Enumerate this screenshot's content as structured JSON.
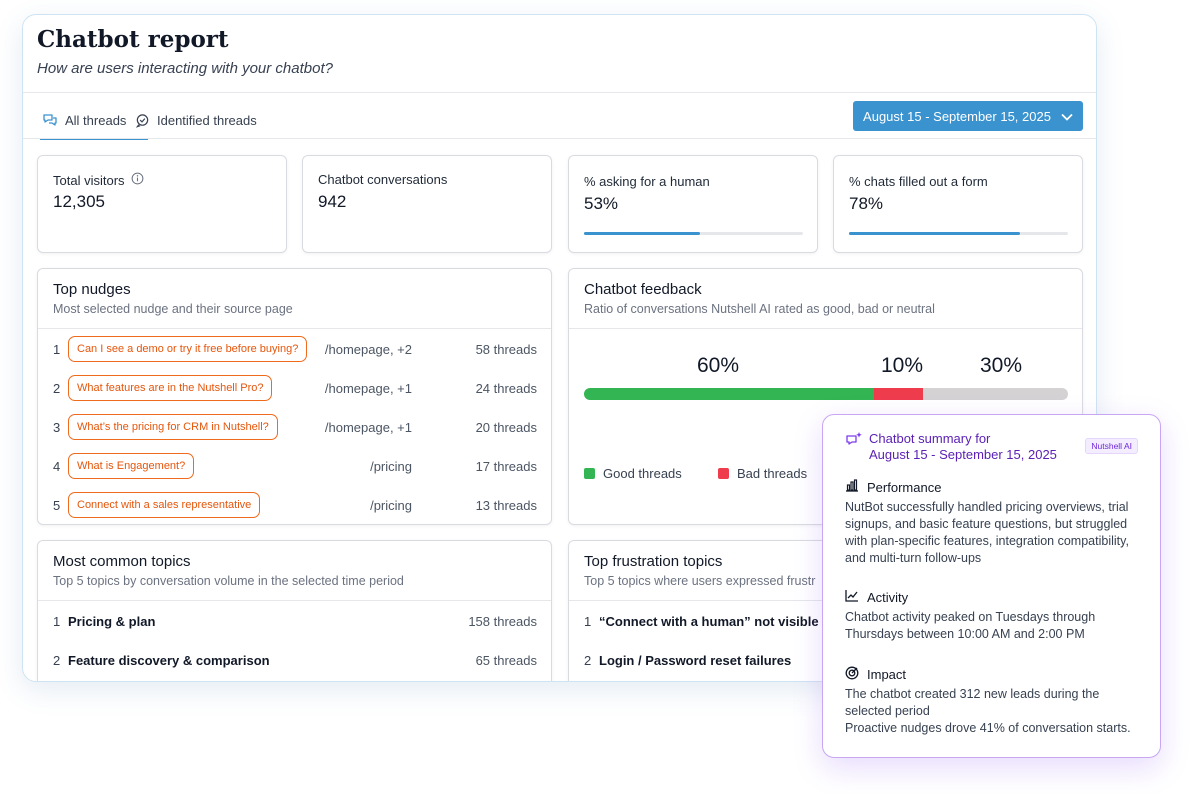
{
  "header": {
    "title": "Chatbot report",
    "subtitle": "How are users interacting with your chatbot?"
  },
  "tabs": [
    {
      "label": "All threads",
      "active": true,
      "icon": "chat-bubbles-icon"
    },
    {
      "label": "Identified threads",
      "active": false,
      "icon": "chat-check-icon"
    }
  ],
  "date_range": {
    "label": "August 15 - September 15, 2025"
  },
  "stats": [
    {
      "label": "Total visitors",
      "value": "12,305",
      "info_icon": true
    },
    {
      "label": "Chatbot conversations",
      "value": "942"
    },
    {
      "label": "% asking for a human",
      "value": "53%",
      "progress": 0.53
    },
    {
      "label": "% chats filled out a form",
      "value": "78%",
      "progress": 0.78
    }
  ],
  "top_nudges": {
    "title": "Top nudges",
    "subtitle": "Most selected nudge and their source page",
    "rows": [
      {
        "rank": "1",
        "nudge": "Can I see a demo or try it free before buying?",
        "source": "/homepage, +2",
        "threads": "58 threads"
      },
      {
        "rank": "2",
        "nudge": "What features are in the Nutshell Pro?",
        "source": "/homepage, +1",
        "threads": "24 threads"
      },
      {
        "rank": "3",
        "nudge": "What’s the pricing for CRM in Nutshell?",
        "source": "/homepage, +1",
        "threads": "20 threads"
      },
      {
        "rank": "4",
        "nudge": "What is Engagement?",
        "source": "/pricing",
        "threads": "17 threads"
      },
      {
        "rank": "5",
        "nudge": "Connect with a sales representative",
        "source": "/pricing",
        "threads": "13 threads"
      }
    ]
  },
  "feedback": {
    "title": "Chatbot feedback",
    "subtitle": "Ratio of conversations Nutshell AI rated as good, bad or neutral",
    "good_pct": "60%",
    "bad_pct": "10%",
    "neutral_pct": "30%",
    "legend_good": "Good threads",
    "legend_bad": "Bad threads",
    "colors": {
      "good": "#34b553",
      "bad": "#ef3c4d",
      "neutral": "#d4d2d3"
    }
  },
  "chart_data": {
    "type": "bar",
    "categories": [
      "Good threads",
      "Bad threads",
      "Neutral"
    ],
    "values": [
      60,
      10,
      30
    ],
    "stacked": true
  },
  "common_topics": {
    "title": "Most common topics",
    "subtitle": "Top 5 topics by conversation volume in the selected time period",
    "rows": [
      {
        "rank": "1",
        "topic": "Pricing  & plan",
        "threads": "158 threads"
      },
      {
        "rank": "2",
        "topic": "Feature discovery & comparison",
        "threads": "65 threads"
      }
    ]
  },
  "frustration_topics": {
    "title": "Top frustration topics",
    "subtitle": "Top 5 topics where users expressed frustr",
    "rows": [
      {
        "rank": "1",
        "topic": "“Connect with a human” not visible"
      },
      {
        "rank": "2",
        "topic": "Login / Password reset failures"
      }
    ]
  },
  "summary": {
    "title_line1": "Chatbot summary for",
    "title_line2": "August 15 - September 15, 2025",
    "badge": "Nutshell AI",
    "sections": [
      {
        "title": "Performance",
        "icon": "bar-chart-icon",
        "body": "NutBot successfully handled pricing overviews, trial signups, and basic feature questions, but struggled with plan-specific features, integration compatibility, and multi-turn follow-ups"
      },
      {
        "title": "Activity",
        "icon": "line-chart-icon",
        "body": "Chatbot activity peaked on Tuesdays through Thursdays between 10:00 AM and 2:00 PM"
      },
      {
        "title": "Impact",
        "icon": "target-icon",
        "body_line1": "The chatbot created 312 new leads during the selected period",
        "body_line2": "Proactive nudges drove 41% of conversation starts."
      }
    ]
  }
}
